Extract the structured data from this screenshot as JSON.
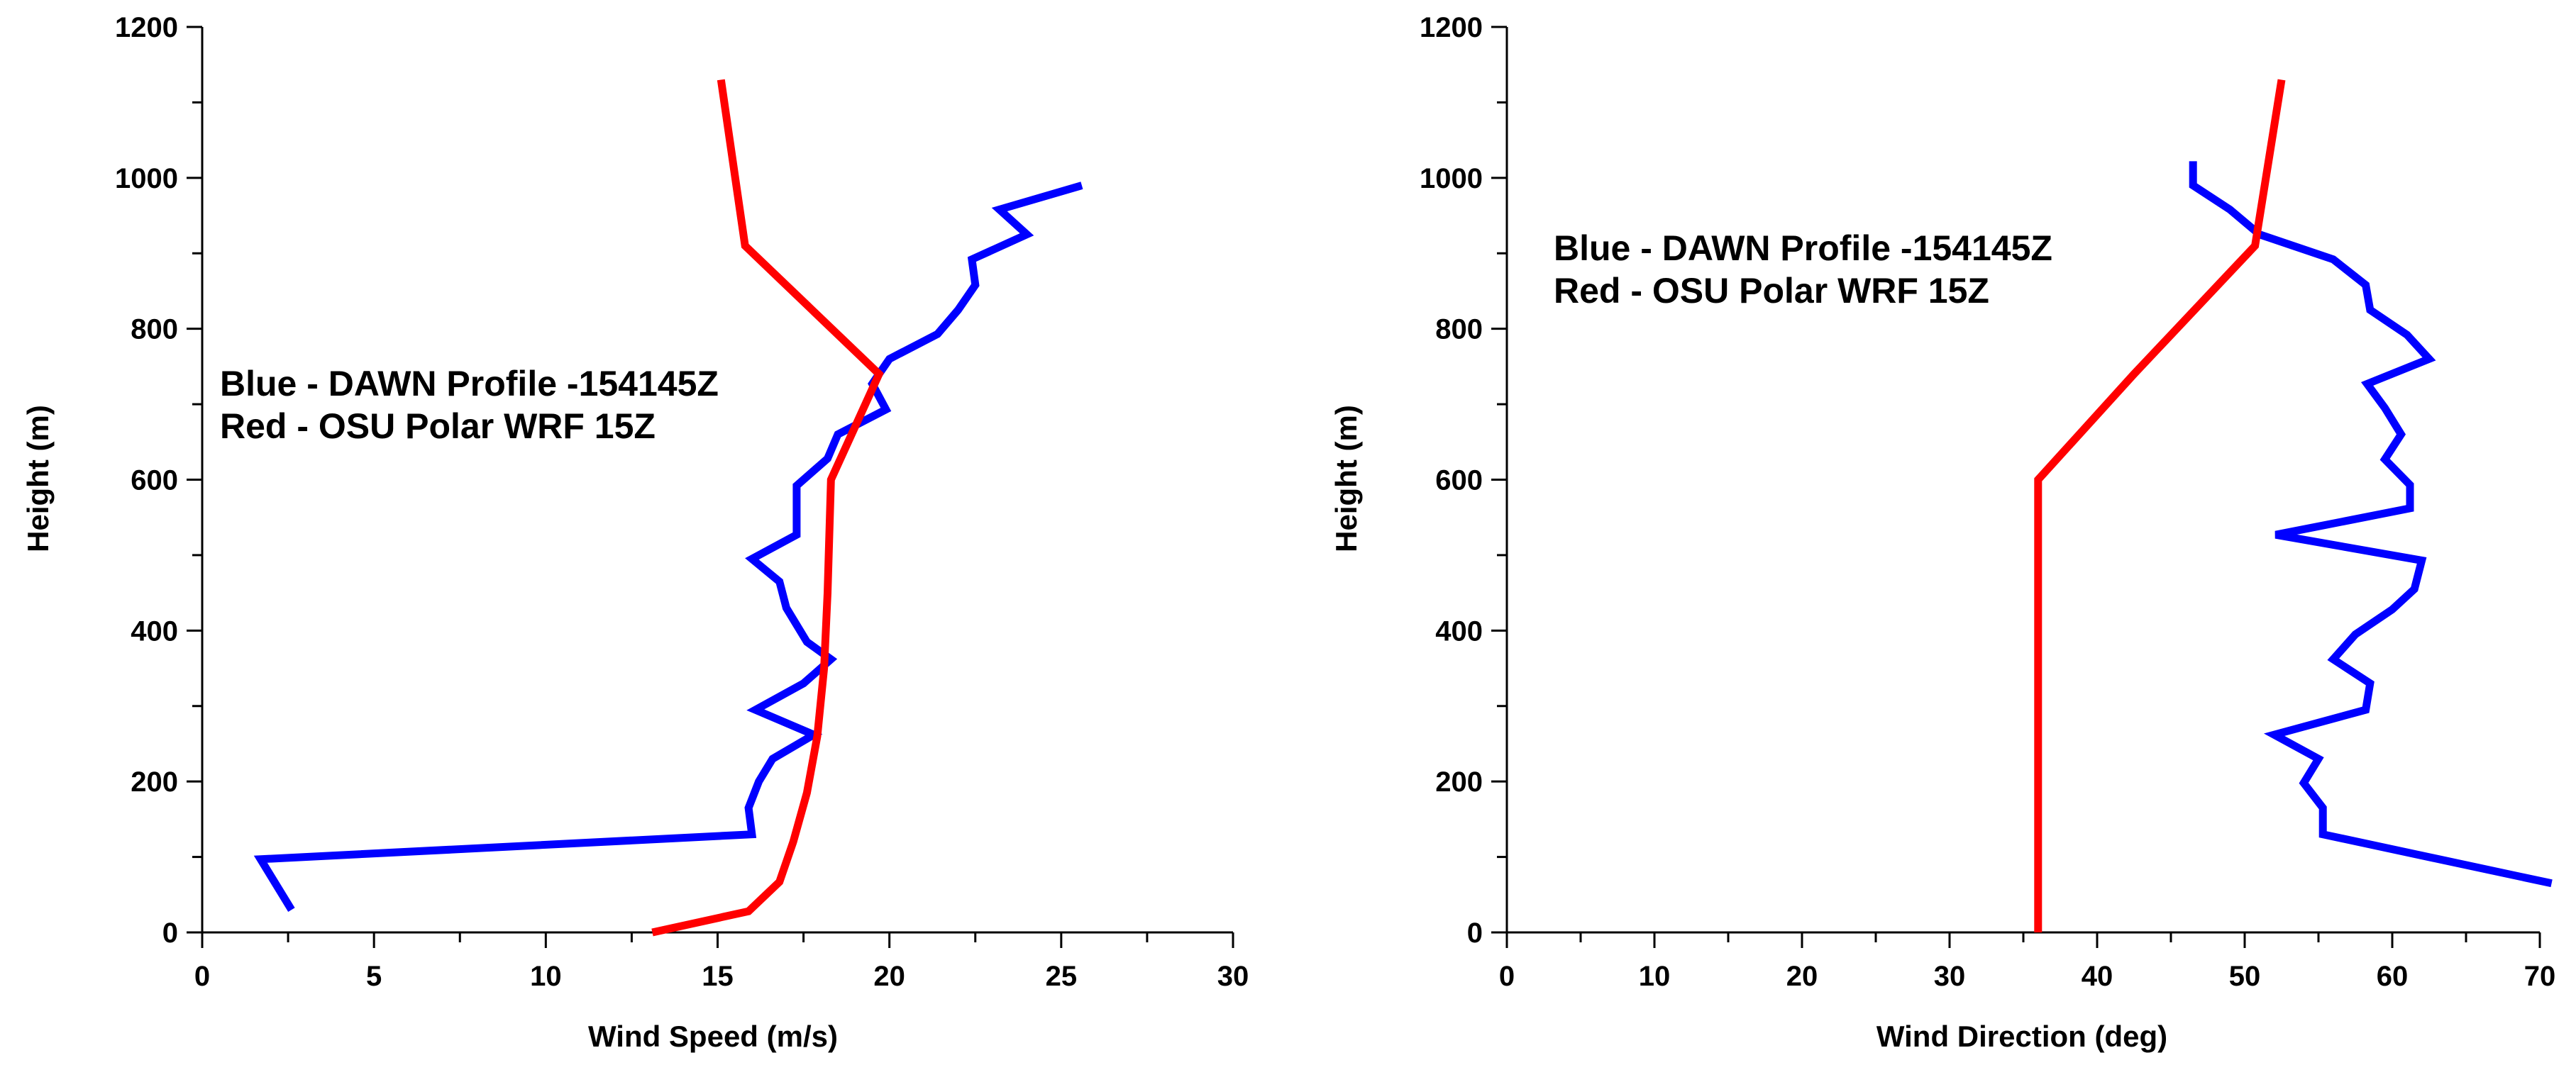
{
  "chart_data": [
    {
      "type": "line",
      "xlabel": "Wind Speed (m/s)",
      "ylabel": "Height (m)",
      "xlim": [
        0,
        30
      ],
      "ylim": [
        0,
        1200
      ],
      "xticks": [
        0,
        5,
        10,
        15,
        20,
        25,
        30
      ],
      "yticks": [
        0,
        200,
        400,
        600,
        800,
        1000,
        1200
      ],
      "grid": false,
      "annotations": [
        "Blue - DAWN Profile -154145Z",
        "Red - OSU Polar WRF 15Z"
      ],
      "series": [
        {
          "color": "#0000ff",
          "points": [
            [
              2.6,
              30
            ],
            [
              1.7,
              97
            ],
            [
              16.0,
              130
            ],
            [
              15.9,
              165
            ],
            [
              16.2,
              200
            ],
            [
              16.6,
              230
            ],
            [
              17.8,
              262
            ],
            [
              16.1,
              295
            ],
            [
              17.5,
              330
            ],
            [
              18.3,
              362
            ],
            [
              17.6,
              385
            ],
            [
              17.0,
              430
            ],
            [
              16.8,
              465
            ],
            [
              16.0,
              495
            ],
            [
              17.3,
              527
            ],
            [
              17.3,
              592
            ],
            [
              18.2,
              628
            ],
            [
              18.5,
              660
            ],
            [
              19.9,
              693
            ],
            [
              19.5,
              727
            ],
            [
              20.0,
              760
            ],
            [
              21.4,
              793
            ],
            [
              22.0,
              825
            ],
            [
              22.5,
              858
            ],
            [
              22.4,
              892
            ],
            [
              24.0,
              925
            ],
            [
              23.2,
              958
            ],
            [
              25.6,
              990
            ]
          ]
        },
        {
          "color": "#ff0000",
          "points": [
            [
              13.1,
              0
            ],
            [
              15.9,
              28
            ],
            [
              16.8,
              67
            ],
            [
              17.2,
              120
            ],
            [
              17.6,
              185
            ],
            [
              17.9,
              260
            ],
            [
              18.1,
              350
            ],
            [
              18.2,
              450
            ],
            [
              18.3,
              600
            ],
            [
              19.7,
              740
            ],
            [
              15.8,
              910
            ],
            [
              15.1,
              1130
            ]
          ]
        }
      ]
    },
    {
      "type": "line",
      "xlabel": "Wind Direction (deg)",
      "ylabel": "Height (m)",
      "xlim": [
        0,
        70
      ],
      "ylim": [
        0,
        1200
      ],
      "xticks": [
        0,
        10,
        20,
        30,
        40,
        50,
        60,
        70
      ],
      "yticks": [
        0,
        200,
        400,
        600,
        800,
        1000,
        1200
      ],
      "grid": false,
      "annotations": [
        "Blue - DAWN Profile -154145Z",
        "Red - OSU Polar WRF 15Z"
      ],
      "series": [
        {
          "color": "#0000ff",
          "points": [
            [
              70.8,
              65
            ],
            [
              55.3,
              130
            ],
            [
              55.3,
              165
            ],
            [
              54.0,
              198
            ],
            [
              55.0,
              230
            ],
            [
              52.0,
              262
            ],
            [
              58.2,
              295
            ],
            [
              58.5,
              330
            ],
            [
              56.0,
              362
            ],
            [
              57.5,
              395
            ],
            [
              60.0,
              428
            ],
            [
              61.5,
              455
            ],
            [
              62.0,
              493
            ],
            [
              52.1,
              527
            ],
            [
              61.2,
              562
            ],
            [
              61.2,
              593
            ],
            [
              59.5,
              627
            ],
            [
              60.6,
              660
            ],
            [
              59.5,
              695
            ],
            [
              58.3,
              727
            ],
            [
              62.5,
              760
            ],
            [
              61.0,
              792
            ],
            [
              58.5,
              825
            ],
            [
              58.2,
              858
            ],
            [
              56.0,
              892
            ],
            [
              51.0,
              925
            ],
            [
              49.0,
              958
            ],
            [
              46.5,
              990
            ],
            [
              46.5,
              1022
            ]
          ]
        },
        {
          "color": "#ff0000",
          "points": [
            [
              36.0,
              0
            ],
            [
              36.0,
              200
            ],
            [
              36.0,
              400
            ],
            [
              36.0,
              600
            ],
            [
              42.5,
              740
            ],
            [
              50.7,
              910
            ],
            [
              52.5,
              1130
            ]
          ]
        }
      ]
    }
  ]
}
